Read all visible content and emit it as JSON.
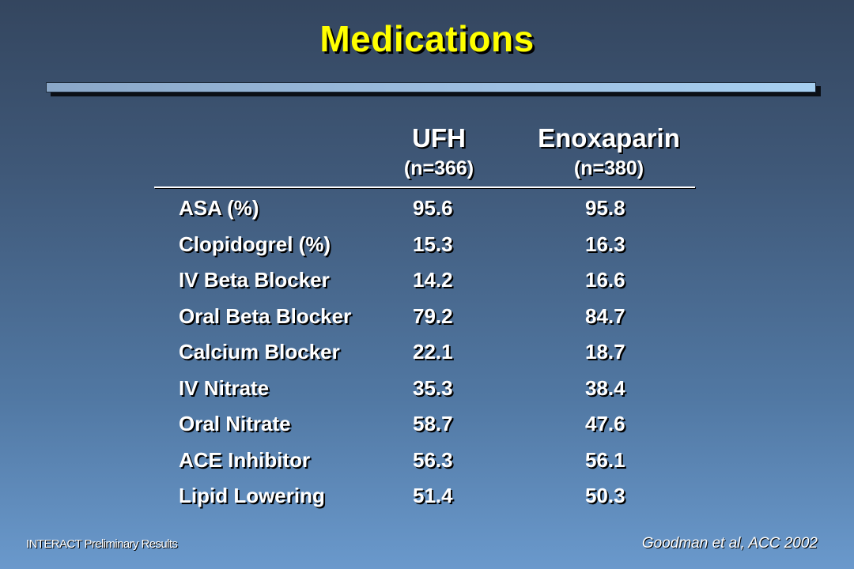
{
  "title": "Medications",
  "columns": {
    "ufh": {
      "name": "UFH",
      "n": "(n=366)"
    },
    "enox": {
      "name": "Enoxaparin",
      "n": "(n=380)"
    }
  },
  "rows": [
    {
      "label": "ASA (%)",
      "ufh": "95.6",
      "enox": "95.8"
    },
    {
      "label": "Clopidogrel (%)",
      "ufh": "15.3",
      "enox": "16.3"
    },
    {
      "label": "IV Beta Blocker",
      "ufh": "14.2",
      "enox": "16.6"
    },
    {
      "label": "Oral Beta Blocker",
      "ufh": "79.2",
      "enox": "84.7"
    },
    {
      "label": "Calcium Blocker",
      "ufh": "22.1",
      "enox": "18.7"
    },
    {
      "label": "IV Nitrate",
      "ufh": "35.3",
      "enox": "38.4"
    },
    {
      "label": "Oral Nitrate",
      "ufh": "58.7",
      "enox": "47.6"
    },
    {
      "label": "ACE Inhibitor",
      "ufh": "56.3",
      "enox": "56.1"
    },
    {
      "label": "Lipid Lowering",
      "ufh": "51.4",
      "enox": "50.3"
    }
  ],
  "footer": {
    "left": "INTERACT Preliminary Results",
    "right": "Goodman et al, ACC 2002"
  },
  "colors": {
    "title": "#ffff00",
    "text": "#ffffff",
    "background_top": "#34465f",
    "background_bottom": "#6a99cc"
  }
}
